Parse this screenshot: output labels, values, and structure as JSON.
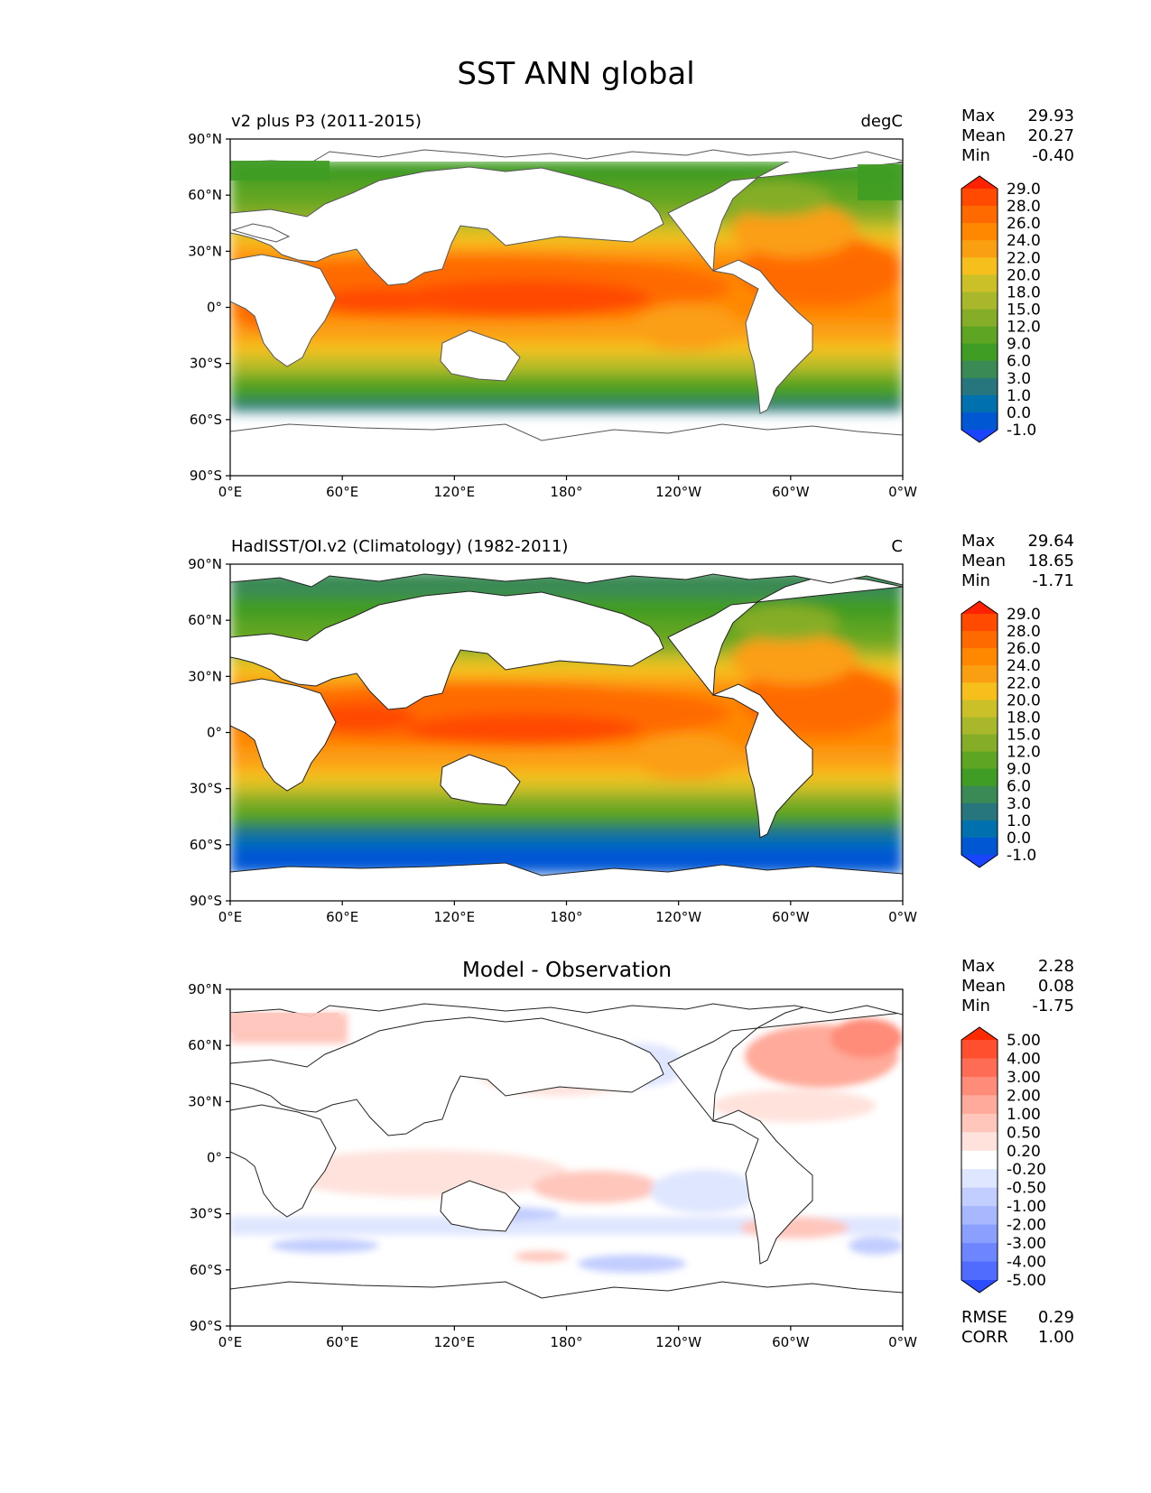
{
  "title": "SST ANN global",
  "axes": {
    "lat_labels": [
      "90°N",
      "60°N",
      "30°N",
      "0°",
      "30°S",
      "60°S",
      "90°S"
    ],
    "lon_labels": [
      "0°E",
      "60°E",
      "120°E",
      "180°",
      "120°W",
      "60°W",
      "0°W"
    ]
  },
  "panels": [
    {
      "id": "model",
      "title_left": "v2 plus P3 (2011-2015)",
      "title_center": "",
      "title_right": "degC",
      "stats": [
        {
          "label": "Max",
          "value": "29.93"
        },
        {
          "label": "Mean",
          "value": "20.27"
        },
        {
          "label": "Min",
          "value": "-0.40"
        }
      ],
      "colorbar_labels": [
        "29.0",
        "28.0",
        "26.0",
        "24.0",
        "22.0",
        "20.0",
        "18.0",
        "15.0",
        "12.0",
        "9.0",
        "6.0",
        "3.0",
        "1.0",
        "0.0",
        "-1.0"
      ],
      "colorbar_colors": [
        "#ff2200",
        "#ff4a00",
        "#ff6a00",
        "#ff8800",
        "#fb9f12",
        "#f6bf1c",
        "#ccc028",
        "#a9b82a",
        "#86ad28",
        "#5ea523",
        "#3f9c24",
        "#3a8a55",
        "#27767e",
        "#0071ae",
        "#0057d4",
        "#1a44ff"
      ]
    },
    {
      "id": "obs",
      "title_left": "HadISST/OI.v2 (Climatology) (1982-2011)",
      "title_center": "",
      "title_right": "C",
      "stats": [
        {
          "label": "Max",
          "value": "29.64"
        },
        {
          "label": "Mean",
          "value": "18.65"
        },
        {
          "label": "Min",
          "value": "-1.71"
        }
      ],
      "colorbar_labels": [
        "29.0",
        "28.0",
        "26.0",
        "24.0",
        "22.0",
        "20.0",
        "18.0",
        "15.0",
        "12.0",
        "9.0",
        "6.0",
        "3.0",
        "1.0",
        "0.0",
        "-1.0"
      ],
      "colorbar_colors": [
        "#ff2200",
        "#ff4a00",
        "#ff6a00",
        "#ff8800",
        "#fb9f12",
        "#f6bf1c",
        "#ccc028",
        "#a9b82a",
        "#86ad28",
        "#5ea523",
        "#3f9c24",
        "#3a8a55",
        "#27767e",
        "#0071ae",
        "#0057d4",
        "#1a44ff"
      ]
    },
    {
      "id": "diff",
      "title_left": "",
      "title_center": "Model - Observation",
      "title_right": "",
      "stats": [
        {
          "label": "Max",
          "value": "2.28"
        },
        {
          "label": "Mean",
          "value": "0.08"
        },
        {
          "label": "Min",
          "value": "-1.75"
        }
      ],
      "extra_stats": [
        {
          "label": "RMSE",
          "value": "0.29"
        },
        {
          "label": "CORR",
          "value": "1.00"
        }
      ],
      "colorbar_labels": [
        "5.00",
        "4.00",
        "3.00",
        "2.00",
        "1.00",
        "0.50",
        "0.20",
        "-0.20",
        "-0.50",
        "-1.00",
        "-2.00",
        "-3.00",
        "-4.00",
        "-5.00"
      ],
      "colorbar_colors": [
        "#ff2a00",
        "#ff4f2e",
        "#ff6c55",
        "#ff8b78",
        "#ffaa9a",
        "#ffc6bc",
        "#ffe2dc",
        "#ffffff",
        "#dfe6ff",
        "#c2ceff",
        "#a7b8ff",
        "#8a9fff",
        "#6d86ff",
        "#4f6cff",
        "#2b4cff"
      ]
    }
  ]
}
